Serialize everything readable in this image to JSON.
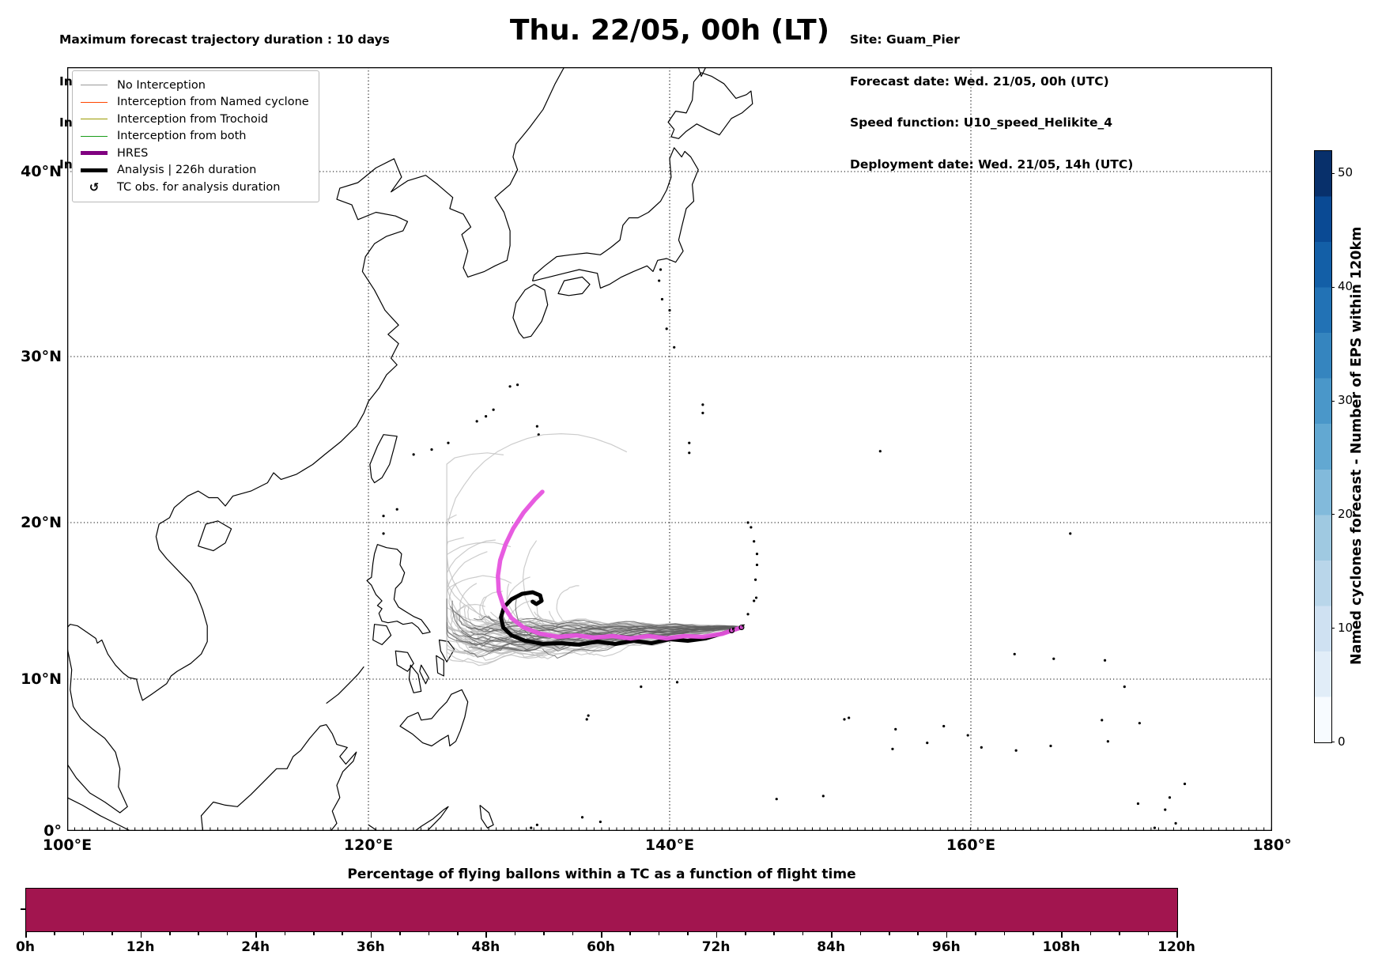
{
  "header": {
    "left": [
      "Maximum forecast trajectory duration : 10 days",
      "Intercept distance: 300km",
      "Intercept RW2 (EPS):  30km/h2",
      "Intercept RW2 (HRES): 30km/h2"
    ],
    "right": [
      "Site: Guam_Pier",
      "Forecast date: Wed. 21/05, 00h (UTC)",
      "Speed function: U10_speed_Helikite_4",
      "Deployment date: Wed. 21/05, 14h (UTC)"
    ]
  },
  "title": "Thu. 22/05, 00h (LT)",
  "legend": {
    "items": [
      {
        "label": "No Interception",
        "color": "#999999",
        "weight": 1.5,
        "kind": "line"
      },
      {
        "label": "Interception from Named cyclone",
        "color": "#ff4500",
        "weight": 1.5,
        "kind": "line"
      },
      {
        "label": "Interception from Trochoid",
        "color": "#9a9a00",
        "weight": 1.5,
        "kind": "line"
      },
      {
        "label": "Interception from both",
        "color": "#1a9c1a",
        "weight": 1.5,
        "kind": "line"
      },
      {
        "label": "HRES",
        "color": "#800080",
        "weight": 5,
        "kind": "line"
      },
      {
        "label": "Analysis | 226h duration",
        "color": "#000000",
        "weight": 5,
        "kind": "line"
      },
      {
        "label": "TC obs. for analysis duration",
        "color": "#000000",
        "icon": "↺",
        "kind": "icon"
      }
    ]
  },
  "map": {
    "x_ticks": [
      {
        "label": "100°E",
        "lon": 100
      },
      {
        "label": "120°E",
        "lon": 120
      },
      {
        "label": "140°E",
        "lon": 140
      },
      {
        "label": "160°E",
        "lon": 160
      },
      {
        "label": "180°",
        "lon": 180
      }
    ],
    "y_ticks": [
      {
        "label": "0°",
        "lat": 0
      },
      {
        "label": "10°N",
        "lat": 10
      },
      {
        "label": "20°N",
        "lat": 20
      },
      {
        "label": "30°N",
        "lat": 30
      },
      {
        "label": "40°N",
        "lat": 40
      }
    ],
    "grid_lons": [
      120,
      140,
      160
    ],
    "grid_lats": [
      10,
      20,
      30,
      40
    ]
  },
  "colorbar": {
    "label": "Named cyclones forecast - Number of EPS within 120km",
    "ticks": [
      0,
      10,
      20,
      30,
      40,
      50
    ],
    "vmax": 52,
    "steps": [
      "#f7fbff",
      "#e1edf8",
      "#cfe1f2",
      "#b9d6ea",
      "#9fc9e1",
      "#82badb",
      "#62a8d2",
      "#4a97c9",
      "#3585bf",
      "#2272b5",
      "#135fa7",
      "#0a4a94",
      "#08306b"
    ]
  },
  "bottom": {
    "title": "Percentage of flying ballons within a TC as a function of flight time",
    "tick_labels": [
      "0h",
      "12h",
      "24h",
      "36h",
      "48h",
      "60h",
      "72h",
      "84h",
      "96h",
      "108h",
      "120h"
    ],
    "bar_color": "#a2154f"
  },
  "chart_data": [
    {
      "type": "map-trajectories",
      "title": "Thu. 22/05, 00h (LT)",
      "x_axis": {
        "label_ticks": [
          "100°E",
          "120°E",
          "140°E",
          "160°E",
          "180°"
        ],
        "range_lon": [
          100,
          180
        ]
      },
      "y_axis": {
        "label_ticks": [
          "0°",
          "10°N",
          "20°N",
          "30°N",
          "40°N"
        ],
        "range_lat": [
          0,
          45.7
        ]
      },
      "grid": "dotted",
      "origin": {
        "name": "Guam_Pier",
        "lon": 144.75,
        "lat": 13.35
      },
      "ensemble": {
        "name": "No Interception (EPS)",
        "count": 58,
        "dark_count": 22,
        "seed": 12,
        "color_light": "#bfbfbf",
        "color_dark": "#5f5f5f",
        "corridor_lat_band": [
          11.5,
          13.8
        ],
        "turn_lon_range": [
          126.6,
          135.4
        ],
        "end_lat_max": 27.5
      },
      "hres": {
        "name": "HRES",
        "color_map": "#e653de",
        "track": [
          [
            144.75,
            13.3
          ],
          [
            143.5,
            12.9
          ],
          [
            142.2,
            12.7
          ],
          [
            141.0,
            12.75
          ],
          [
            139.8,
            12.6
          ],
          [
            138.6,
            12.75
          ],
          [
            137.4,
            12.6
          ],
          [
            136.2,
            12.75
          ],
          [
            135.0,
            12.65
          ],
          [
            133.8,
            12.8
          ],
          [
            132.6,
            12.7
          ],
          [
            131.4,
            12.9
          ],
          [
            130.3,
            13.3
          ],
          [
            129.5,
            13.9
          ],
          [
            128.95,
            14.7
          ],
          [
            128.65,
            15.6
          ],
          [
            128.6,
            16.6
          ],
          [
            128.75,
            17.6
          ],
          [
            129.1,
            18.6
          ],
          [
            129.6,
            19.6
          ],
          [
            130.3,
            20.6
          ],
          [
            131.05,
            21.4
          ],
          [
            131.55,
            21.85
          ]
        ]
      },
      "analysis": {
        "name": "Analysis | 226h duration",
        "color": "#000000",
        "track": [
          [
            144.75,
            13.3
          ],
          [
            143.6,
            12.95
          ],
          [
            142.4,
            12.6
          ],
          [
            141.2,
            12.45
          ],
          [
            140.0,
            12.55
          ],
          [
            138.8,
            12.3
          ],
          [
            137.6,
            12.45
          ],
          [
            136.4,
            12.25
          ],
          [
            135.2,
            12.4
          ],
          [
            134.0,
            12.2
          ],
          [
            132.8,
            12.3
          ],
          [
            131.6,
            12.25
          ],
          [
            130.4,
            12.45
          ],
          [
            129.5,
            12.8
          ],
          [
            128.95,
            13.3
          ],
          [
            128.8,
            13.95
          ],
          [
            129.0,
            14.6
          ],
          [
            129.5,
            15.1
          ],
          [
            130.2,
            15.45
          ],
          [
            130.9,
            15.55
          ],
          [
            131.4,
            15.35
          ],
          [
            131.5,
            15.0
          ],
          [
            131.15,
            14.8
          ],
          [
            130.9,
            14.95
          ]
        ]
      },
      "tc_obs": {
        "symbol": "↺",
        "positions": [
          [
            144.75,
            13.3
          ],
          [
            144.1,
            13.1
          ]
        ]
      }
    },
    {
      "type": "bar",
      "title": "Percentage of flying ballons within a TC as a function of flight time",
      "x": [
        0,
        12,
        24,
        36,
        48,
        60,
        72,
        84,
        96,
        108,
        120
      ],
      "x_tick_labels": [
        "0h",
        "12h",
        "24h",
        "36h",
        "48h",
        "60h",
        "72h",
        "84h",
        "96h",
        "108h",
        "120h"
      ],
      "minor_tick_step_h": 3,
      "series": [
        {
          "name": "percentage of flying balloons within a TC",
          "values_percent": [
            100,
            100,
            100,
            100,
            100,
            100,
            100,
            100,
            100,
            100,
            100
          ]
        }
      ],
      "ylim": [
        0,
        100
      ],
      "bar_color": "#a2154f"
    },
    {
      "type": "colorbar",
      "title": "Named cyclones forecast - Number of EPS within 120km",
      "colormap": "Blues",
      "range": [
        0,
        52
      ],
      "tick_values": [
        0,
        10,
        20,
        30,
        40,
        50
      ]
    }
  ]
}
